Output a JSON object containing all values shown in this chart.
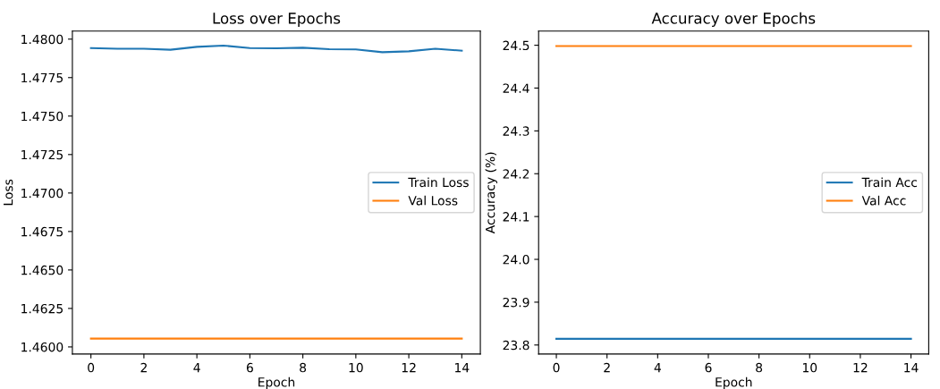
{
  "chart_data": [
    {
      "type": "line",
      "title": "Loss over Epochs",
      "xlabel": "Epoch",
      "ylabel": "Loss",
      "x": [
        0,
        1,
        2,
        3,
        4,
        5,
        6,
        7,
        8,
        9,
        10,
        11,
        12,
        13,
        14
      ],
      "series": [
        {
          "name": "Train Loss",
          "color": "#1f77b4",
          "values": [
            1.47942,
            1.47938,
            1.47938,
            1.47931,
            1.4795,
            1.47958,
            1.47942,
            1.4794,
            1.47944,
            1.47935,
            1.47933,
            1.47915,
            1.47921,
            1.47938,
            1.47925
          ]
        },
        {
          "name": "Val Loss",
          "color": "#ff7f0e",
          "values": [
            1.46054,
            1.46054,
            1.46054,
            1.46054,
            1.46054,
            1.46054,
            1.46054,
            1.46054,
            1.46054,
            1.46054,
            1.46054,
            1.46054,
            1.46054,
            1.46054,
            1.46054
          ]
        }
      ],
      "xlim": [
        -0.7,
        14.7
      ],
      "xticks": [
        0,
        2,
        4,
        6,
        8,
        10,
        12,
        14
      ],
      "ylim": [
        1.45954,
        1.48052
      ],
      "yticks": [
        {
          "value": 1.46,
          "label": "1.4600"
        },
        {
          "value": 1.4625,
          "label": "1.4625"
        },
        {
          "value": 1.465,
          "label": "1.4650"
        },
        {
          "value": 1.4675,
          "label": "1.4675"
        },
        {
          "value": 1.47,
          "label": "1.4700"
        },
        {
          "value": 1.4725,
          "label": "1.4725"
        },
        {
          "value": 1.475,
          "label": "1.4750"
        },
        {
          "value": 1.4775,
          "label": "1.4775"
        },
        {
          "value": 1.48,
          "label": "1.4800"
        }
      ],
      "legend": "center right",
      "grid": false
    },
    {
      "type": "line",
      "title": "Accuracy over Epochs",
      "xlabel": "Epoch",
      "ylabel": "Accuracy (%)",
      "x": [
        0,
        1,
        2,
        3,
        4,
        5,
        6,
        7,
        8,
        9,
        10,
        11,
        12,
        13,
        14
      ],
      "series": [
        {
          "name": "Train Acc",
          "color": "#1f77b4",
          "values": [
            23.8145,
            23.8145,
            23.8145,
            23.8145,
            23.8145,
            23.8145,
            23.8145,
            23.8145,
            23.8145,
            23.8145,
            23.8145,
            23.8145,
            23.8145,
            23.8145,
            23.8145
          ]
        },
        {
          "name": "Val Acc",
          "color": "#ff7f0e",
          "values": [
            24.498,
            24.498,
            24.498,
            24.498,
            24.498,
            24.498,
            24.498,
            24.498,
            24.498,
            24.498,
            24.498,
            24.498,
            24.498,
            24.498,
            24.498
          ]
        }
      ],
      "xlim": [
        -0.7,
        14.7
      ],
      "xticks": [
        0,
        2,
        4,
        6,
        8,
        10,
        12,
        14
      ],
      "ylim": [
        23.779,
        24.533
      ],
      "yticks": [
        {
          "value": 23.8,
          "label": "23.8"
        },
        {
          "value": 23.9,
          "label": "23.9"
        },
        {
          "value": 24.0,
          "label": "24.0"
        },
        {
          "value": 24.1,
          "label": "24.1"
        },
        {
          "value": 24.2,
          "label": "24.2"
        },
        {
          "value": 24.3,
          "label": "24.3"
        },
        {
          "value": 24.4,
          "label": "24.4"
        },
        {
          "value": 24.5,
          "label": "24.5"
        }
      ],
      "legend": "center right",
      "grid": false
    }
  ]
}
